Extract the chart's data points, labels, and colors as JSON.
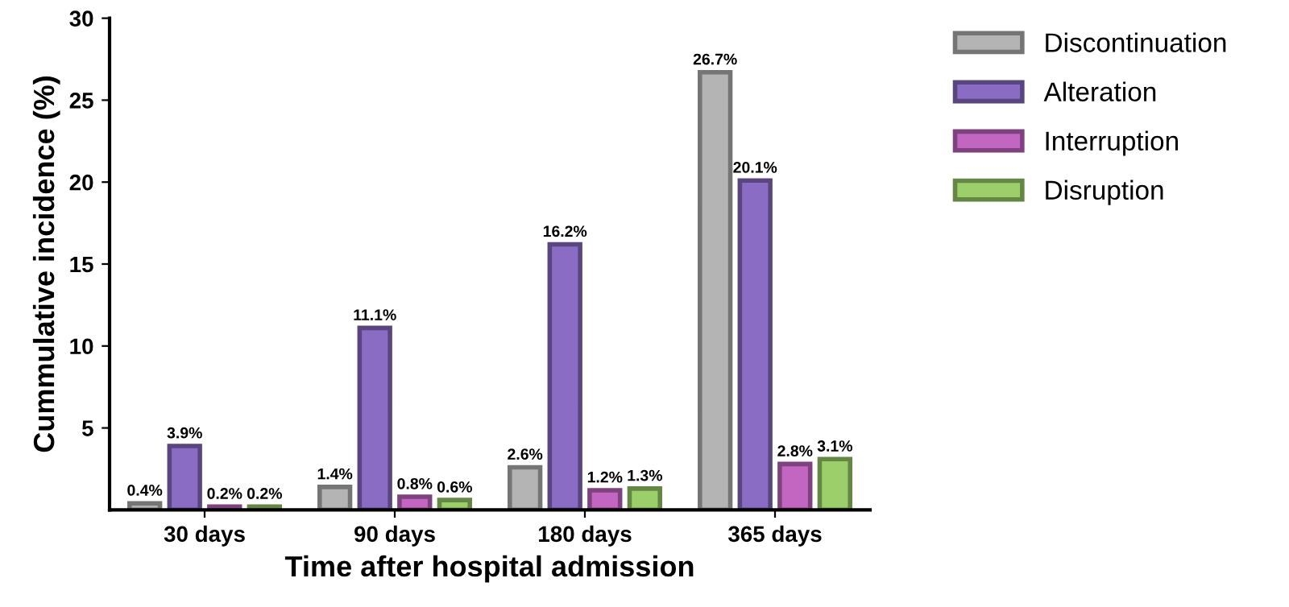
{
  "chart_data": {
    "type": "bar",
    "xlabel": "Time after hospital admission",
    "ylabel": "Cummulative incidence (%)",
    "categories": [
      "30 days",
      "90 days",
      "180 days",
      "365 days"
    ],
    "series": [
      {
        "name": "Discontinuation",
        "color": "#b4b4b4",
        "values": [
          0.4,
          1.4,
          2.6,
          26.7
        ],
        "value_labels": [
          "0.4%",
          "1.4%",
          "2.6%",
          "26.7%"
        ]
      },
      {
        "name": "Alteration",
        "color": "#8a6cc4",
        "values": [
          3.9,
          11.1,
          16.2,
          20.1
        ],
        "value_labels": [
          "3.9%",
          "11.1%",
          "16.2%",
          "20.1%"
        ]
      },
      {
        "name": "Interruption",
        "color": "#c266c2",
        "values": [
          0.2,
          0.8,
          1.2,
          2.8
        ],
        "value_labels": [
          "0.2%",
          "0.8%",
          "1.2%",
          "2.8%"
        ]
      },
      {
        "name": "Disruption",
        "color": "#9ccf6a",
        "values": [
          0.2,
          0.6,
          1.3,
          3.1
        ],
        "value_labels": [
          "0.2%",
          "0.6%",
          "1.3%",
          "3.1%"
        ]
      }
    ],
    "ylim": [
      0,
      30
    ],
    "yticks": [
      5,
      10,
      15,
      20,
      25,
      30
    ],
    "legend": "right",
    "grid": false
  }
}
